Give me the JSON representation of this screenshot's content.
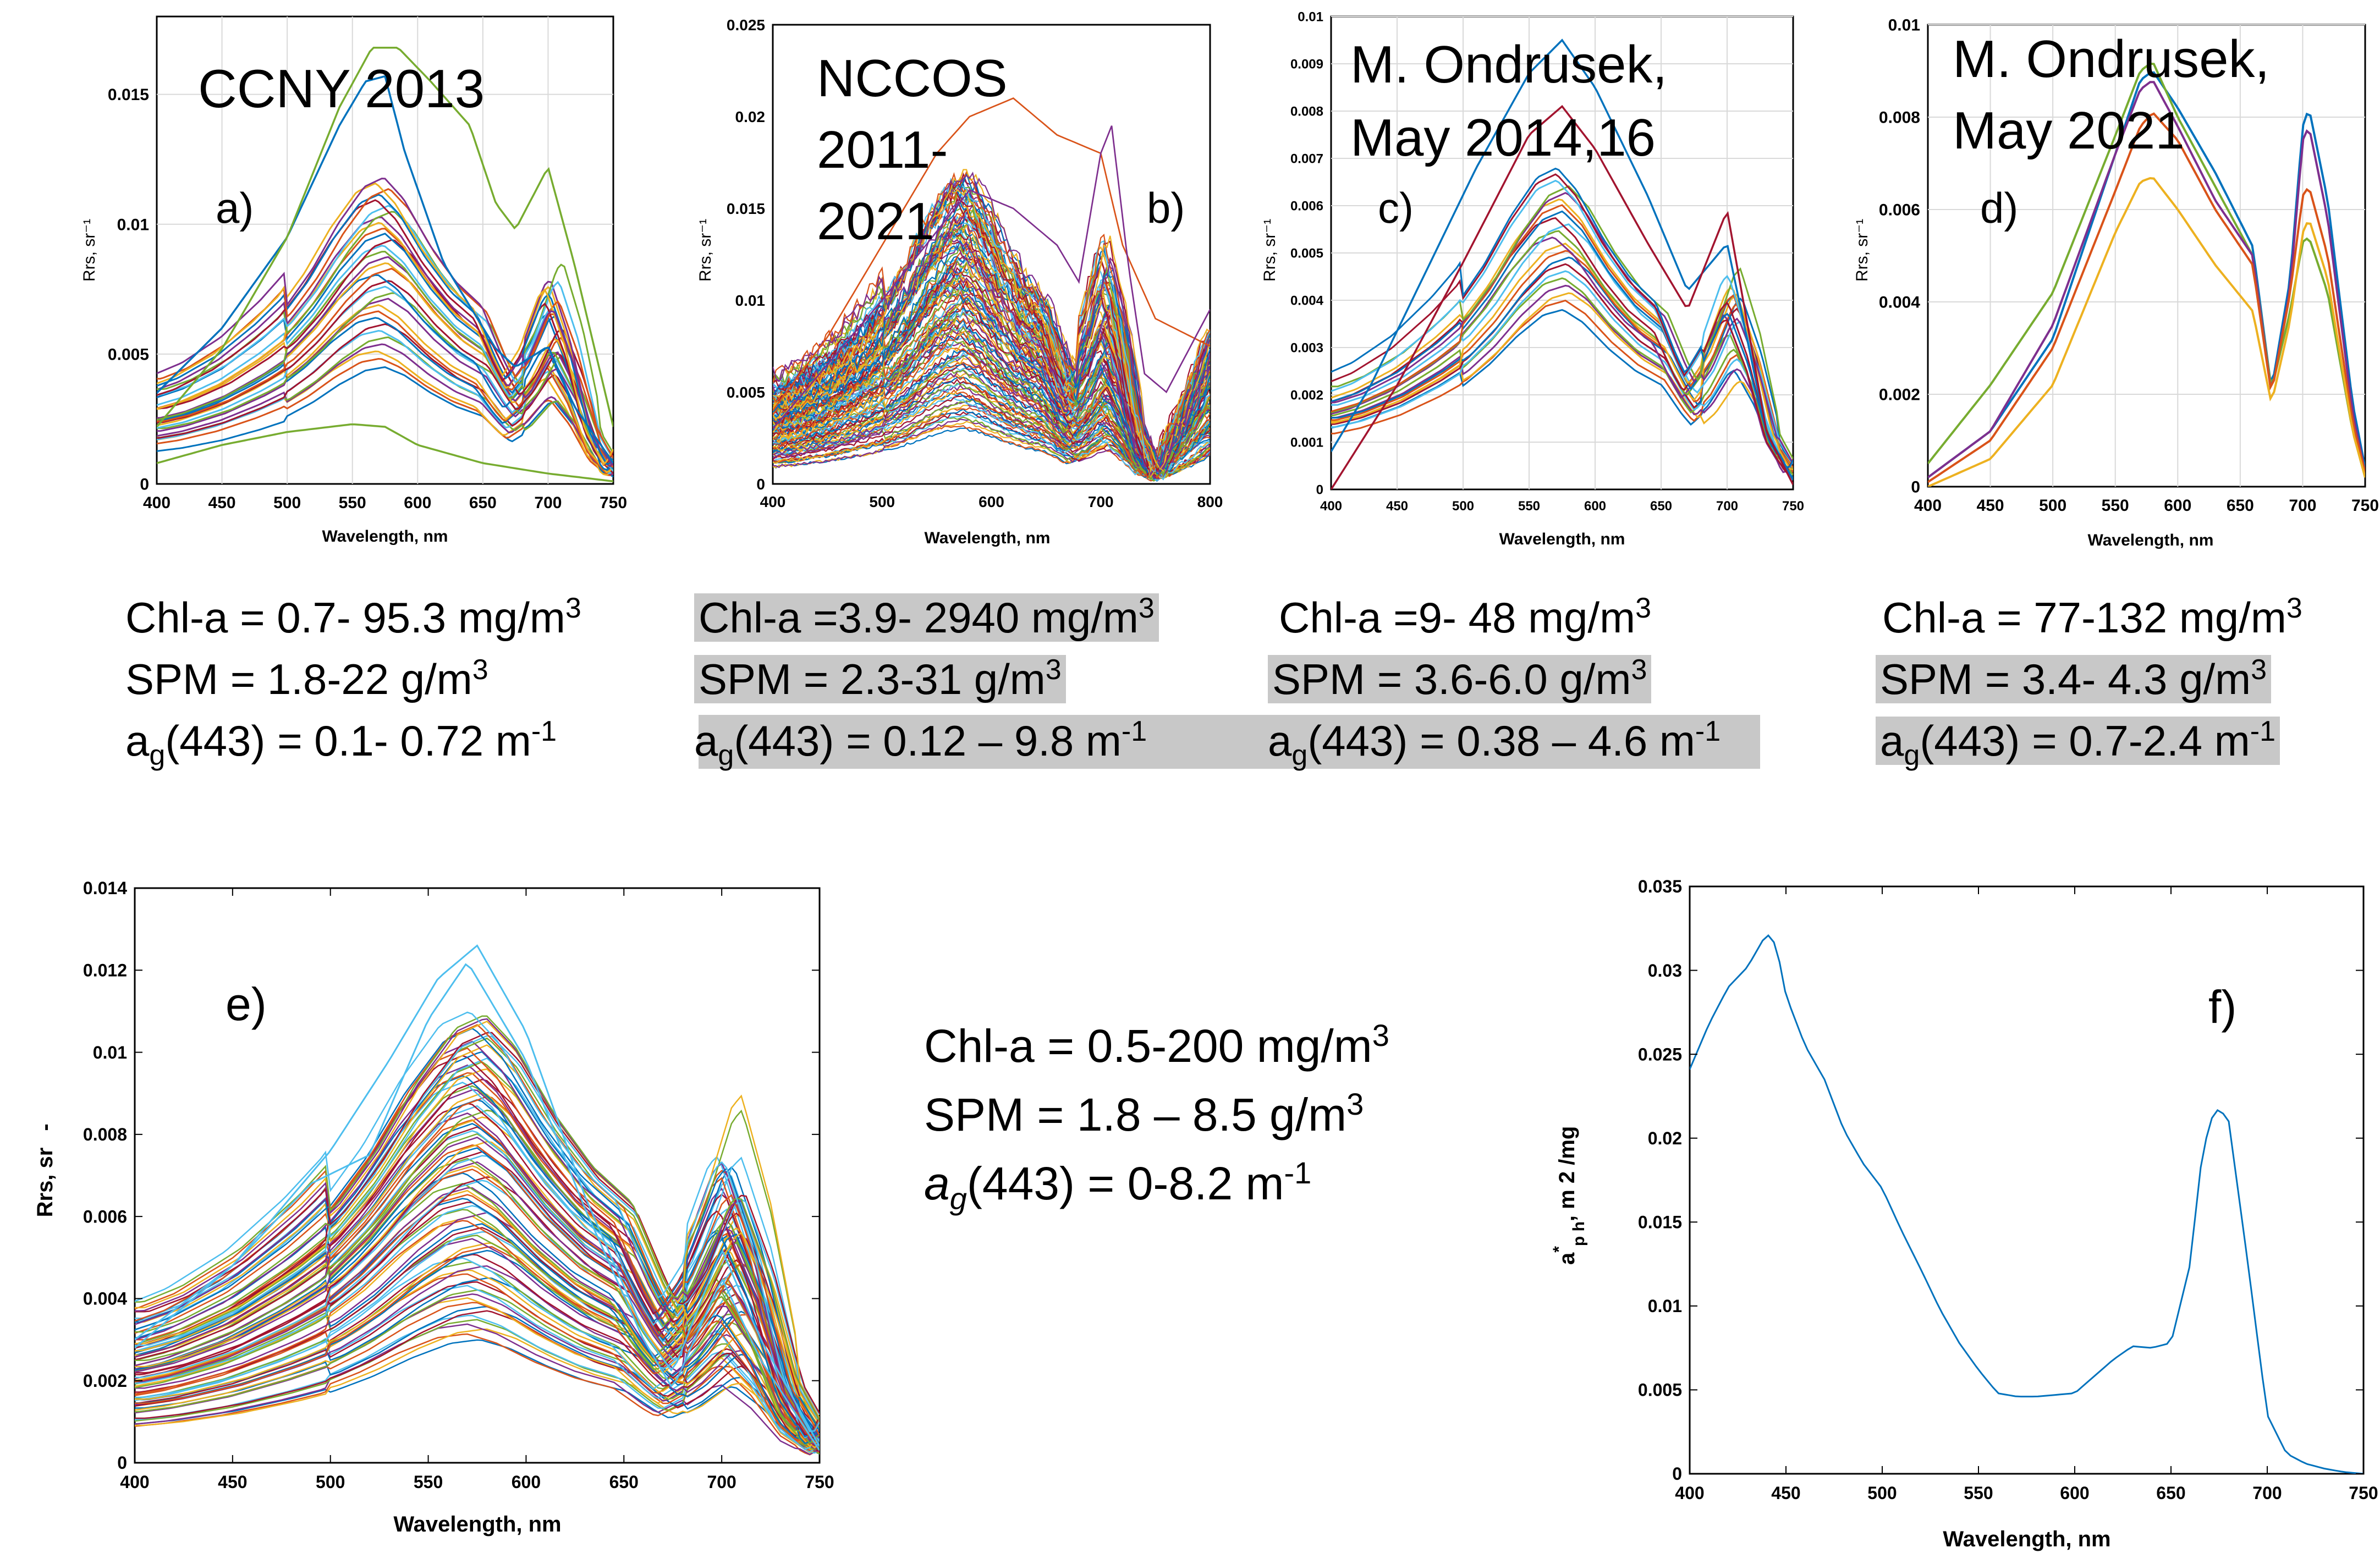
{
  "panels": [
    {
      "id": "a",
      "title": "CCNY 2013",
      "letter": "a)",
      "xlabel": "Wavelength, nm",
      "ylabel": "Rrs, sr⁻¹",
      "xticks": [
        "400",
        "450",
        "500",
        "550",
        "600",
        "650",
        "700",
        "750"
      ],
      "yticks": [
        "0",
        "0.005",
        "0.01",
        "0.015"
      ],
      "stats": {
        "chl": {
          "text": "Chl-a = 0.7- 95.3 mg/m",
          "sup": "3"
        },
        "spm": {
          "text": "SPM = 1.8-22 g/m",
          "sup": "3"
        },
        "ag": {
          "pre": "a",
          "sub": "g",
          "text": "(443) = 0.1- 0.72 m",
          "sup": "-1"
        }
      }
    },
    {
      "id": "b",
      "title_lines": [
        "NCCOS",
        "2011-",
        "2021"
      ],
      "letter": "b)",
      "xlabel": "Wavelength, nm",
      "ylabel": "Rrs, sr⁻¹",
      "xticks": [
        "400",
        "500",
        "600",
        "700",
        "800"
      ],
      "yticks": [
        "0",
        "0.005",
        "0.01",
        "0.015",
        "0.02",
        "0.025"
      ],
      "stats": {
        "chl": {
          "text": "Chl-a =3.9- 2940 mg/m",
          "sup": "3"
        },
        "spm": {
          "text": "SPM = 2.3-31 g/m",
          "sup": "3"
        },
        "ag": {
          "pre": "a",
          "sub": "g",
          "text": "(443) = 0.12 – 9.8 m",
          "sup": "-1"
        }
      }
    },
    {
      "id": "c",
      "title_lines": [
        "M. Ondrusek,",
        "May 2014,16"
      ],
      "letter": "c)",
      "xlabel": "Wavelength, nm",
      "ylabel": "Rrs, sr⁻¹",
      "xticks": [
        "400",
        "450",
        "500",
        "550",
        "600",
        "650",
        "700",
        "750"
      ],
      "yticks": [
        "0",
        "0.001",
        "0.002",
        "0.003",
        "0.004",
        "0.005",
        "0.006",
        "0.007",
        "0.008",
        "0.009",
        "0.01"
      ],
      "stats": {
        "chl": {
          "text": "Chl-a =9- 48 mg/m",
          "sup": "3"
        },
        "spm": {
          "text": "SPM = 3.6-6.0 g/m",
          "sup": "3"
        },
        "ag": {
          "pre": "a",
          "sub": "g",
          "text": "(443) = 0.38 – 4.6 m",
          "sup": "-1"
        }
      }
    },
    {
      "id": "d",
      "title_lines": [
        "M. Ondrusek,",
        "May 2021"
      ],
      "letter": "d)",
      "xlabel": "Wavelength, nm",
      "ylabel": "Rrs, sr⁻¹",
      "xticks": [
        "400",
        "450",
        "500",
        "550",
        "600",
        "650",
        "700",
        "750"
      ],
      "yticks": [
        "0",
        "0.002",
        "0.004",
        "0.006",
        "0.008",
        "0.01"
      ],
      "stats": {
        "chl": {
          "text": "Chl-a = 77-132 mg/m",
          "sup": "3"
        },
        "spm": {
          "text": "SPM = 3.4- 4.3 g/m",
          "sup": "3"
        },
        "ag": {
          "pre": "a",
          "sub": "g",
          "text": "(443) = 0.7-2.4 m",
          "sup": "-1"
        }
      }
    },
    {
      "id": "e",
      "letter": "e)",
      "xlabel": "Wavelength, nm",
      "ylabel": "Rrs, sr",
      "xticks": [
        "400",
        "450",
        "500",
        "550",
        "600",
        "650",
        "700",
        "750"
      ],
      "yticks": [
        "0",
        "0.002",
        "0.004",
        "0.006",
        "0.008",
        "0.01",
        "0.012",
        "0.014"
      ],
      "stats": {
        "chl": {
          "text": "Chl-a = 0.5-200 mg/m",
          "sup": "3"
        },
        "spm": {
          "text": "SPM = 1.8 – 8.5 g/m",
          "sup": "3"
        },
        "ag": {
          "pre": "a",
          "sub": "g",
          "text": "(443) = 0-8.2 m",
          "sup": "-1"
        }
      }
    },
    {
      "id": "f",
      "letter": "f)",
      "xlabel": "Wavelength, nm",
      "ylabel_parts": {
        "a": "a",
        "star": "*",
        "ph": "p h",
        "rest": ", m 2 /mg"
      },
      "xticks": [
        "400",
        "450",
        "500",
        "550",
        "600",
        "650",
        "700",
        "750"
      ],
      "yticks": [
        "0",
        "0.005",
        "0.01",
        "0.015",
        "0.02",
        "0.025",
        "0.03",
        "0.035"
      ]
    }
  ],
  "chart_data": [
    {
      "type": "line",
      "panel": "a",
      "title": "CCNY 2013",
      "xlabel": "Wavelength, nm",
      "ylabel": "Rrs, sr-1",
      "xlim": [
        400,
        750
      ],
      "ylim": [
        0,
        0.018
      ],
      "series_style": "ensemble",
      "ensemble": {
        "count": 32,
        "peak_min": 0.0045,
        "peak_max": 0.0118,
        "peak_wavelength": 575,
        "trough_wavelength": 670,
        "nir_peak_wavelength": 700
      },
      "series": [
        {
          "name": "max-blue",
          "color": "#0072BD",
          "x": [
            400,
            450,
            500,
            540,
            560,
            575,
            590,
            620,
            660,
            675,
            700,
            720,
            750
          ],
          "y": [
            0.0035,
            0.006,
            0.0095,
            0.0138,
            0.0155,
            0.0157,
            0.0128,
            0.0085,
            0.0052,
            0.0045,
            0.0053,
            0.003,
            0.0008
          ]
        },
        {
          "name": "green-high",
          "color": "#77AC30",
          "x": [
            400,
            450,
            500,
            540,
            565,
            585,
            610,
            640,
            660,
            675,
            700,
            720,
            750
          ],
          "y": [
            0.0022,
            0.0052,
            0.0095,
            0.0145,
            0.0168,
            0.0168,
            0.0155,
            0.0138,
            0.0108,
            0.0098,
            0.0122,
            0.0085,
            0.0022
          ]
        },
        {
          "name": "low-green",
          "color": "#77AC30",
          "x": [
            400,
            450,
            500,
            550,
            575,
            600,
            650,
            700,
            750
          ],
          "y": [
            0.0008,
            0.0015,
            0.002,
            0.0023,
            0.0022,
            0.0015,
            0.0008,
            0.0004,
            0.0001
          ]
        }
      ]
    },
    {
      "type": "line",
      "panel": "b",
      "title": "NCCOS 2011-2021",
      "xlabel": "Wavelength, nm",
      "ylabel": "Rrs, sr-1",
      "xlim": [
        400,
        800
      ],
      "ylim": [
        0,
        0.025
      ],
      "series_style": "ensemble",
      "ensemble": {
        "count": 130,
        "peak_min": 0.003,
        "peak_max": 0.017,
        "peak_wavelength": 580,
        "trough_wavelength": 675,
        "nir_peak_wavelength": 705
      },
      "series": [
        {
          "name": "orange-high",
          "color": "#D95319",
          "x": [
            400,
            450,
            500,
            550,
            580,
            620,
            660,
            700,
            720,
            750,
            800
          ],
          "y": [
            0.004,
            0.008,
            0.013,
            0.018,
            0.02,
            0.021,
            0.019,
            0.018,
            0.013,
            0.009,
            0.0075
          ]
        },
        {
          "name": "purple-spike",
          "color": "#7E2F8E",
          "x": [
            400,
            500,
            580,
            620,
            660,
            680,
            700,
            710,
            725,
            740,
            760,
            800
          ],
          "y": [
            0.003,
            0.01,
            0.016,
            0.015,
            0.013,
            0.011,
            0.018,
            0.0195,
            0.012,
            0.006,
            0.005,
            0.0095
          ]
        }
      ]
    },
    {
      "type": "line",
      "panel": "c",
      "title": "M. Ondrusek, May 2014,16",
      "xlabel": "Wavelength, nm",
      "ylabel": "Rrs, sr-1",
      "xlim": [
        400,
        750
      ],
      "ylim": [
        0,
        0.01
      ],
      "series_style": "ensemble",
      "ensemble": {
        "count": 22,
        "peak_min": 0.0038,
        "peak_max": 0.0068,
        "peak_wavelength": 578,
        "trough_wavelength": 670,
        "nir_peak_wavelength": 700
      },
      "series": [
        {
          "name": "top-blue",
          "color": "#0072BD",
          "x": [
            400,
            430,
            470,
            510,
            550,
            575,
            600,
            640,
            670,
            700,
            730,
            750
          ],
          "y": [
            0.0008,
            0.0022,
            0.0045,
            0.0068,
            0.0088,
            0.0095,
            0.0085,
            0.0062,
            0.0042,
            0.0052,
            0.0012,
            0.0002
          ]
        },
        {
          "name": "dark-red",
          "color": "#A2142F",
          "x": [
            400,
            450,
            500,
            550,
            575,
            600,
            640,
            670,
            700,
            730,
            750
          ],
          "y": [
            0.0,
            0.0022,
            0.0048,
            0.0075,
            0.0081,
            0.0072,
            0.0052,
            0.0038,
            0.0059,
            0.0012,
            0.0001
          ]
        }
      ]
    },
    {
      "type": "line",
      "panel": "d",
      "title": "M. Ondrusek, May 2021",
      "xlabel": "Wavelength, nm",
      "ylabel": "Rrs, sr-1",
      "xlim": [
        400,
        750
      ],
      "ylim": [
        0,
        0.01
      ],
      "series": [
        {
          "name": "blue",
          "color": "#0072BD",
          "x": [
            400,
            450,
            500,
            550,
            570,
            580,
            600,
            630,
            660,
            675,
            690,
            700,
            705,
            720,
            740,
            750
          ],
          "y": [
            0.0002,
            0.0012,
            0.0032,
            0.0072,
            0.0088,
            0.009,
            0.0082,
            0.0068,
            0.0052,
            0.0021,
            0.0045,
            0.0078,
            0.0082,
            0.0062,
            0.0018,
            0.0004
          ]
        },
        {
          "name": "green",
          "color": "#77AC30",
          "x": [
            400,
            450,
            500,
            550,
            570,
            580,
            600,
            630,
            660,
            675,
            690,
            700,
            705,
            720,
            740,
            750
          ],
          "y": [
            0.0005,
            0.0022,
            0.0042,
            0.0076,
            0.009,
            0.0092,
            0.008,
            0.0065,
            0.005,
            0.0021,
            0.0038,
            0.0053,
            0.0054,
            0.0042,
            0.0012,
            0.0002
          ]
        },
        {
          "name": "purple",
          "color": "#7E2F8E",
          "x": [
            400,
            450,
            500,
            550,
            570,
            580,
            600,
            630,
            660,
            675,
            690,
            700,
            705,
            720,
            740,
            750
          ],
          "y": [
            0.0002,
            0.0012,
            0.0035,
            0.0072,
            0.0086,
            0.0088,
            0.0078,
            0.0062,
            0.005,
            0.002,
            0.0043,
            0.0075,
            0.0078,
            0.0058,
            0.0016,
            0.0003
          ]
        },
        {
          "name": "red",
          "color": "#D95319",
          "x": [
            400,
            450,
            500,
            550,
            570,
            580,
            600,
            630,
            660,
            675,
            690,
            700,
            705,
            720,
            740,
            750
          ],
          "y": [
            0.0001,
            0.001,
            0.003,
            0.0064,
            0.0078,
            0.0081,
            0.0075,
            0.006,
            0.0048,
            0.002,
            0.0042,
            0.0063,
            0.0065,
            0.005,
            0.0014,
            0.0003
          ]
        },
        {
          "name": "orange",
          "color": "#EDB120",
          "x": [
            400,
            450,
            500,
            550,
            570,
            580,
            600,
            630,
            660,
            675,
            690,
            700,
            705,
            720,
            740,
            750
          ],
          "y": [
            0.0,
            0.0006,
            0.0022,
            0.0055,
            0.0066,
            0.0067,
            0.006,
            0.0048,
            0.0038,
            0.0018,
            0.0036,
            0.0055,
            0.0058,
            0.0045,
            0.0012,
            0.0002
          ]
        }
      ]
    },
    {
      "type": "line",
      "panel": "e",
      "xlabel": "Wavelength, nm",
      "ylabel": "Rrs, sr",
      "xlim": [
        400,
        750
      ],
      "ylim": [
        0,
        0.014
      ],
      "series_style": "ensemble",
      "ensemble": {
        "count": 90,
        "peak_min": 0.003,
        "peak_max": 0.011,
        "peak_wavelength": 573,
        "trough_wavelength": 670,
        "nir_peak_wavelength": 705
      },
      "series": [
        {
          "name": "cyan-max",
          "color": "#4DBEEE",
          "x": [
            400,
            450,
            500,
            530,
            555,
            575,
            600,
            630,
            660,
            675,
            700,
            720,
            750
          ],
          "y": [
            0.0028,
            0.0048,
            0.0076,
            0.0098,
            0.0118,
            0.0126,
            0.0105,
            0.0065,
            0.0032,
            0.0022,
            0.0052,
            0.003,
            0.0004
          ]
        },
        {
          "name": "cyan-shoulder",
          "color": "#4DBEEE",
          "x": [
            400,
            450,
            490,
            520,
            550,
            570,
            600,
            630,
            660,
            675,
            700,
            720,
            750
          ],
          "y": [
            0.003,
            0.0048,
            0.0068,
            0.0075,
            0.0108,
            0.0122,
            0.0098,
            0.0062,
            0.003,
            0.0018,
            0.0045,
            0.0025,
            0.0003
          ]
        }
      ]
    },
    {
      "type": "line",
      "panel": "f",
      "xlabel": "Wavelength, nm",
      "ylabel": "a*ph, m2/mg",
      "xlim": [
        400,
        750
      ],
      "ylim": [
        0,
        0.035
      ],
      "series": [
        {
          "name": "a_ph_star",
          "color": "#0072BD",
          "x": [
            400,
            410,
            420,
            430,
            440,
            445,
            450,
            460,
            470,
            480,
            490,
            500,
            510,
            520,
            530,
            540,
            550,
            560,
            570,
            580,
            590,
            600,
            610,
            620,
            630,
            640,
            650,
            660,
            665,
            670,
            675,
            680,
            690,
            700,
            710,
            720,
            730,
            740,
            750
          ],
          "y": [
            0.0241,
            0.0268,
            0.029,
            0.0302,
            0.0322,
            0.0315,
            0.0285,
            0.0255,
            0.0235,
            0.0205,
            0.0185,
            0.017,
            0.0145,
            0.0122,
            0.0098,
            0.0078,
            0.0062,
            0.0048,
            0.0046,
            0.0046,
            0.0047,
            0.0048,
            0.0058,
            0.0068,
            0.0076,
            0.0075,
            0.0078,
            0.0125,
            0.018,
            0.021,
            0.0218,
            0.021,
            0.0125,
            0.0035,
            0.0012,
            0.0006,
            0.0003,
            0.0001,
            0.0
          ]
        }
      ]
    }
  ]
}
